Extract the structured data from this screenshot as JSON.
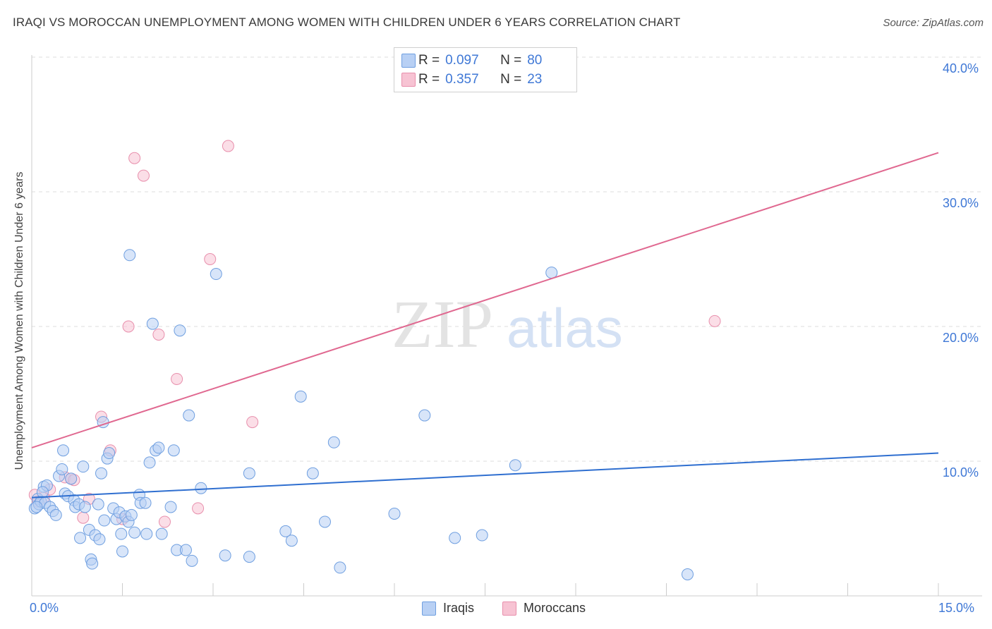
{
  "title": "IRAQI VS MOROCCAN UNEMPLOYMENT AMONG WOMEN WITH CHILDREN UNDER 6 YEARS CORRELATION CHART",
  "source": "Source: ZipAtlas.com",
  "watermark": {
    "zip": "ZIP",
    "atlas": "atlas"
  },
  "colors": {
    "iraqis_fill": "#b8d0f4",
    "iraqis_stroke": "#6f9fe0",
    "iraqis_line": "#2f6fd0",
    "moroccans_fill": "#f7c3d3",
    "moroccans_stroke": "#e88fac",
    "moroccans_line": "#e06890",
    "axis_label": "#3f78d6",
    "grid": "#dddddd"
  },
  "legend_top": {
    "rows": [
      {
        "r_label": "R =",
        "r_value": "0.097",
        "n_label": "N =",
        "n_value": "80"
      },
      {
        "r_label": "R =",
        "r_value": "0.357",
        "n_label": "N =",
        "n_value": "23"
      }
    ]
  },
  "legend_bottom": {
    "iraqis": "Iraqis",
    "moroccans": "Moroccans"
  },
  "axes": {
    "x_min_label": "0.0%",
    "x_max_label": "15.0%",
    "y_ticks": [
      "10.0%",
      "20.0%",
      "30.0%",
      "40.0%"
    ]
  },
  "chart_data": {
    "type": "scatter",
    "title": "IRAQI VS MOROCCAN UNEMPLOYMENT AMONG WOMEN WITH CHILDREN UNDER 6 YEARS CORRELATION CHART",
    "xlabel": "",
    "ylabel": "Unemployment Among Women with Children Under 6 years",
    "xlim": [
      0,
      15
    ],
    "ylim": [
      0,
      42
    ],
    "x_ticks": [
      "0.0%",
      "15.0%"
    ],
    "y_ticks": [
      "10.0%",
      "20.0%",
      "30.0%",
      "40.0%"
    ],
    "grid": true,
    "legend_position": "bottom",
    "series": [
      {
        "name": "Iraqis",
        "R": 0.097,
        "N": 80,
        "trend": {
          "x": [
            0,
            15
          ],
          "y": [
            7.3,
            10.6
          ]
        },
        "points": [
          [
            0.05,
            6.5
          ],
          [
            0.1,
            7.2
          ],
          [
            0.12,
            6.8
          ],
          [
            0.15,
            7.0
          ],
          [
            0.2,
            8.1
          ],
          [
            0.22,
            6.9
          ],
          [
            0.25,
            8.2
          ],
          [
            0.3,
            6.6
          ],
          [
            0.35,
            6.3
          ],
          [
            0.4,
            6.0
          ],
          [
            0.45,
            8.9
          ],
          [
            0.5,
            9.4
          ],
          [
            0.52,
            10.8
          ],
          [
            0.55,
            7.6
          ],
          [
            0.6,
            7.4
          ],
          [
            0.65,
            8.7
          ],
          [
            0.7,
            7.1
          ],
          [
            0.72,
            6.6
          ],
          [
            0.78,
            6.8
          ],
          [
            0.8,
            4.3
          ],
          [
            0.85,
            9.6
          ],
          [
            0.88,
            6.6
          ],
          [
            0.95,
            4.9
          ],
          [
            0.98,
            2.7
          ],
          [
            1.0,
            2.4
          ],
          [
            1.05,
            4.5
          ],
          [
            1.1,
            6.8
          ],
          [
            1.15,
            9.1
          ],
          [
            1.18,
            12.9
          ],
          [
            1.2,
            5.6
          ],
          [
            1.25,
            10.2
          ],
          [
            1.28,
            10.6
          ],
          [
            1.35,
            6.5
          ],
          [
            1.4,
            5.7
          ],
          [
            1.45,
            6.2
          ],
          [
            1.48,
            4.6
          ],
          [
            1.5,
            3.3
          ],
          [
            1.55,
            5.9
          ],
          [
            1.6,
            5.5
          ],
          [
            1.62,
            25.3
          ],
          [
            1.7,
            4.7
          ],
          [
            1.78,
            7.5
          ],
          [
            1.8,
            6.9
          ],
          [
            1.88,
            6.9
          ],
          [
            1.9,
            4.6
          ],
          [
            1.95,
            9.9
          ],
          [
            2.0,
            20.2
          ],
          [
            2.05,
            10.8
          ],
          [
            2.1,
            11.0
          ],
          [
            2.3,
            6.6
          ],
          [
            2.35,
            10.8
          ],
          [
            2.4,
            3.4
          ],
          [
            2.45,
            19.7
          ],
          [
            2.55,
            3.4
          ],
          [
            2.6,
            13.4
          ],
          [
            2.65,
            2.6
          ],
          [
            2.8,
            8.0
          ],
          [
            3.05,
            23.9
          ],
          [
            3.2,
            3.0
          ],
          [
            3.6,
            9.1
          ],
          [
            3.6,
            2.9
          ],
          [
            4.2,
            4.8
          ],
          [
            4.3,
            4.1
          ],
          [
            4.45,
            14.8
          ],
          [
            4.65,
            9.1
          ],
          [
            4.85,
            5.5
          ],
          [
            5.0,
            11.4
          ],
          [
            5.1,
            2.1
          ],
          [
            6.0,
            6.1
          ],
          [
            6.5,
            13.4
          ],
          [
            7.0,
            4.3
          ],
          [
            7.45,
            4.5
          ],
          [
            8.0,
            9.7
          ],
          [
            8.6,
            24.0
          ],
          [
            10.85,
            1.6
          ],
          [
            0.08,
            6.6
          ],
          [
            0.18,
            7.7
          ],
          [
            1.12,
            4.2
          ],
          [
            1.65,
            6.0
          ],
          [
            2.15,
            4.6
          ]
        ]
      },
      {
        "name": "Moroccans",
        "R": 0.357,
        "N": 23,
        "trend": {
          "x": [
            0,
            15
          ],
          "y": [
            11.0,
            32.9
          ]
        },
        "points": [
          [
            0.05,
            7.5
          ],
          [
            0.1,
            7.0
          ],
          [
            0.2,
            7.3
          ],
          [
            0.3,
            7.9
          ],
          [
            0.55,
            8.8
          ],
          [
            0.65,
            8.7
          ],
          [
            0.85,
            5.8
          ],
          [
            0.95,
            7.2
          ],
          [
            1.15,
            13.3
          ],
          [
            1.3,
            10.8
          ],
          [
            1.5,
            5.7
          ],
          [
            1.6,
            20.0
          ],
          [
            1.7,
            32.5
          ],
          [
            1.85,
            31.2
          ],
          [
            2.1,
            19.4
          ],
          [
            2.2,
            5.5
          ],
          [
            2.4,
            16.1
          ],
          [
            2.75,
            6.5
          ],
          [
            2.95,
            25.0
          ],
          [
            3.25,
            33.4
          ],
          [
            3.65,
            12.9
          ],
          [
            11.3,
            20.4
          ],
          [
            0.7,
            8.6
          ]
        ]
      }
    ]
  }
}
